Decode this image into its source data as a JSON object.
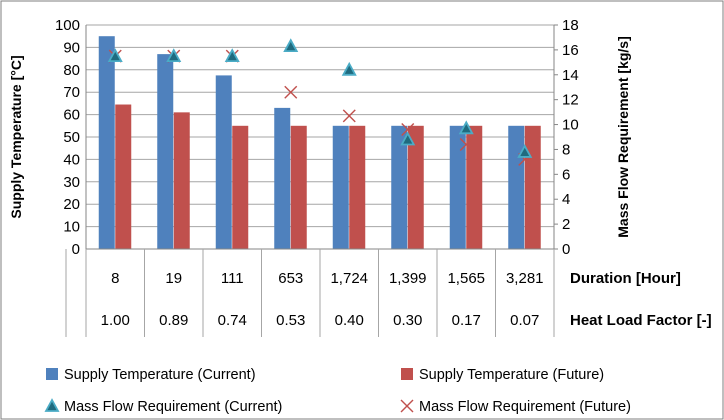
{
  "chart_data": {
    "type": "bar",
    "categories": [
      "8",
      "19",
      "111",
      "653",
      "1,724",
      "1,399",
      "1,565",
      "3,281"
    ],
    "category_rows": [
      {
        "title": "Duration [Hour]",
        "values": [
          "8",
          "19",
          "111",
          "653",
          "1,724",
          "1,399",
          "1,565",
          "3,281"
        ]
      },
      {
        "title": "Heat Load Factor [-]",
        "values": [
          "1.00",
          "0.89",
          "0.74",
          "0.53",
          "0.40",
          "0.30",
          "0.17",
          "0.07"
        ]
      }
    ],
    "ylabel": "Supply Temperature [°C]",
    "y2label": "Mass Flow Requirement [kg/s]",
    "ylim": [
      0,
      100
    ],
    "y2lim": [
      0,
      18
    ],
    "yticks": [
      "0",
      "10",
      "20",
      "30",
      "40",
      "50",
      "60",
      "70",
      "80",
      "90",
      "100"
    ],
    "y2ticks": [
      "0",
      "2",
      "4",
      "6",
      "8",
      "10",
      "12",
      "14",
      "16",
      "18"
    ],
    "grid": true,
    "legend_position": "bottom",
    "series": [
      {
        "name": "Supply Temperature (Current)",
        "type": "bar",
        "axis": "left",
        "color": "#4f81bd",
        "values": [
          95,
          87,
          77.5,
          63,
          55,
          55,
          55,
          55
        ]
      },
      {
        "name": "Supply Temperature (Future)",
        "type": "bar",
        "axis": "left",
        "color": "#c0504d",
        "values": [
          64.5,
          61,
          55,
          55,
          55,
          55,
          55,
          55
        ]
      },
      {
        "name": "Mass Flow Requirement (Current)",
        "type": "marker-triangle",
        "axis": "right",
        "color": "#4bacc6",
        "values": [
          15.5,
          15.5,
          15.5,
          16.3,
          14.4,
          8.8,
          9.7,
          7.8
        ]
      },
      {
        "name": "Mass Flow Requirement (Future)",
        "type": "marker-x",
        "axis": "right",
        "color": "#c0504d",
        "values": [
          15.5,
          15.5,
          15.5,
          12.6,
          10.7,
          9.6,
          8.4,
          7.2
        ]
      }
    ]
  }
}
